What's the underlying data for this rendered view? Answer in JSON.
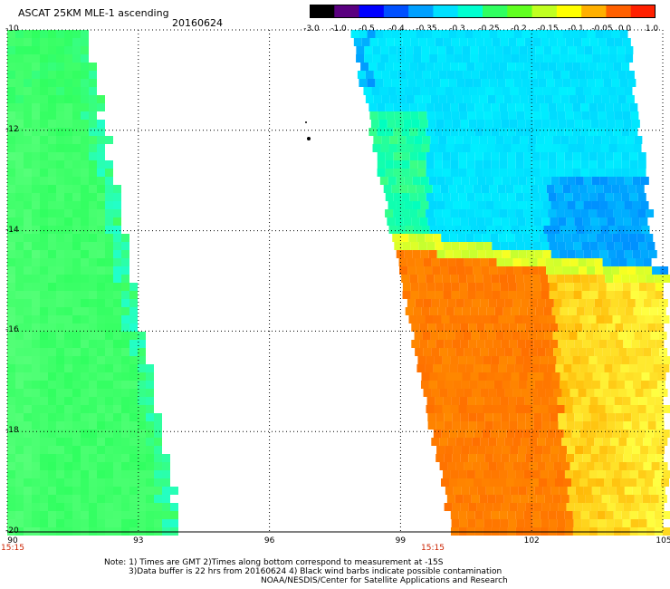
{
  "header": {
    "title": "ASCAT 25KM MLE-1 ascending",
    "date": "20160624"
  },
  "colorbar": {
    "labels": [
      "-3.0",
      "-1.0",
      "-0.5",
      "-0.4",
      "-0.35",
      "-0.3",
      "-0.25",
      "-0.2",
      "-0.15",
      "-0.1",
      "-0.05",
      "0.0",
      "1.0"
    ],
    "colors": [
      "#000000",
      "#5a0080",
      "#0000ff",
      "#0050ff",
      "#00a0ff",
      "#00e0ff",
      "#00ffd0",
      "#30ff60",
      "#60ff20",
      "#c0ff20",
      "#ffff00",
      "#ffb000",
      "#ff6000",
      "#ff2000"
    ]
  },
  "axes": {
    "lat_ticks": [
      "-10",
      "-12",
      "-14",
      "-16",
      "-18",
      "-20"
    ],
    "lon_ticks": [
      "90",
      "93",
      "96",
      "99",
      "102",
      "105"
    ],
    "time_labels": [
      "15:15",
      "15:15"
    ]
  },
  "notes": {
    "line1": "Note: 1) Times are GMT 2)Times along bottom correspond to measurement at -15S",
    "line2": "3)Data buffer is 22 hrs from 20160624 4) Black wind barbs indicate possible contamination",
    "line3": "NOAA/NESDIS/Center for Satellite Applications and Research"
  }
}
